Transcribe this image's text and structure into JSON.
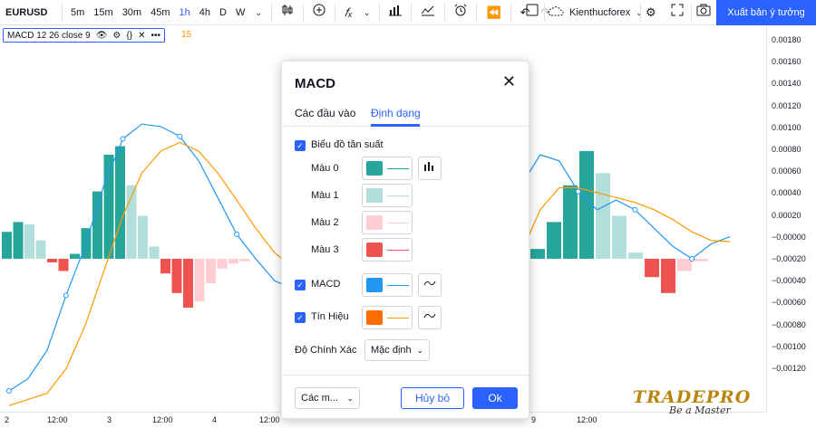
{
  "toolbar": {
    "symbol": "EURUSD",
    "intervals": [
      "5m",
      "15m",
      "30m",
      "45m",
      "1h",
      "4h",
      "D",
      "W"
    ],
    "active_interval": "1h",
    "account_name": "Kienthucforex",
    "publish_label": "Xuất bản ý tưởng"
  },
  "legend": {
    "text": "MACD 12 26 close 9",
    "value": "15"
  },
  "price_axis": {
    "ticks": [
      "0.00180",
      "0.00160",
      "0.00140",
      "0.00120",
      "0.00100",
      "0.00080",
      "0.00060",
      "0.00040",
      "0.00020",
      "−0.00000",
      "−0.00020",
      "−0.00040",
      "−0.00060",
      "−0.00080",
      "−0.00100",
      "−0.00120"
    ]
  },
  "time_axis": {
    "ticks": [
      "2",
      "12:00",
      "3",
      "12:00",
      "4",
      "12:00",
      "9",
      "12:00"
    ]
  },
  "watermark": {
    "title": "TRADEPRO",
    "subtitle": "Be a Master"
  },
  "dialog": {
    "title": "MACD",
    "tabs": [
      "Các đầu vào",
      "Định dạng"
    ],
    "active_tab": "Định dạng",
    "histogram_label": "Biểu đồ tần suất",
    "colors": [
      {
        "label": "Màu 0",
        "color": "#26a69a"
      },
      {
        "label": "Màu 1",
        "color": "#b2dfdb"
      },
      {
        "label": "Màu 2",
        "color": "#ffcdd2"
      },
      {
        "label": "Màu 3",
        "color": "#ef5350"
      }
    ],
    "macd_label": "MACD",
    "macd_color": "#2196f3",
    "signal_label": "Tín Hiệu",
    "signal_color": "#ff6d00",
    "precision_label": "Độ Chính Xác",
    "precision_value": "Mặc định",
    "template_label": "Các m...",
    "cancel_label": "Hủy bỏ",
    "ok_label": "Ok"
  },
  "chart_data": {
    "type": "line",
    "title": "",
    "series": [
      {
        "name": "MACD",
        "color": "#2196f3",
        "values": [
          -0.00108,
          -0.00098,
          -0.00075,
          -0.0003,
          0.0001,
          0.0006,
          0.00098,
          0.0011,
          0.00108,
          0.001,
          0.0008,
          0.0005,
          0.0002,
          0.0,
          -0.00018,
          -0.00025,
          -0.00028,
          -0.0002,
          -0.0001,
          -5e-05,
          -0.00015,
          -0.0004,
          -0.0006,
          -0.00075,
          -0.0006,
          -0.0003,
          0.0001,
          0.0006,
          0.00085,
          0.0008,
          0.00055,
          0.0004,
          0.00048,
          0.0004,
          0.00025,
          0.0001,
          0.0,
          0.00012,
          0.00018
        ]
      },
      {
        "name": "Signal",
        "color": "#ff9800",
        "values": [
          -0.0012,
          -0.00115,
          -0.0011,
          -0.0009,
          -0.00055,
          -0.0001,
          0.00035,
          0.0007,
          0.00088,
          0.00095,
          0.00088,
          0.0007,
          0.00048,
          0.00025,
          5e-05,
          -8e-05,
          -0.00016,
          -0.0002,
          -0.00018,
          -0.00014,
          -0.00016,
          -0.00024,
          -0.00034,
          -0.00046,
          -0.00052,
          -0.00048,
          -0.0003,
          5e-05,
          0.0004,
          0.00058,
          0.00058,
          0.00054,
          0.0005,
          0.00046,
          0.0004,
          0.00032,
          0.00022,
          0.00015,
          0.00014
        ]
      }
    ],
    "histogram": {
      "values": [
        0.00022,
        0.0003,
        0.00028,
        0.00015,
        -3e-05,
        -0.0001,
        4e-05,
        0.00025,
        0.00055,
        0.00085,
        0.00092,
        0.0006,
        0.00035,
        0.0001,
        -0.00012,
        -0.00028,
        -0.0004,
        -0.00035,
        -0.0002,
        -8e-05,
        -4e-05,
        -2e-05,
        8e-05,
        0.0003,
        0.0006,
        0.00088,
        0.0007,
        0.00035,
        5e-05,
        -0.00015,
        -0.00028,
        -0.0001,
        -2e-05
      ]
    },
    "ylim": [
      -0.00125,
      0.0019
    ],
    "grid": false,
    "legend": "none"
  }
}
